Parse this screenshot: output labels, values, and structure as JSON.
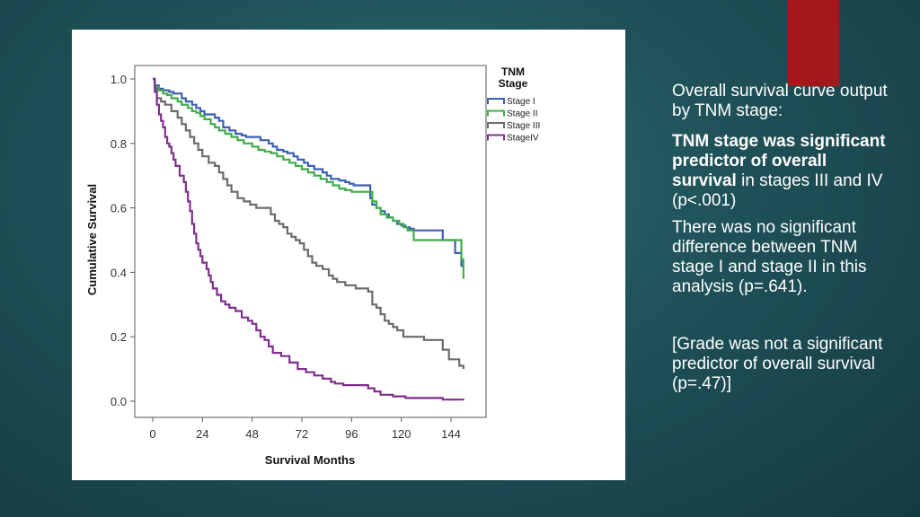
{
  "colors": {
    "accent": "#a3191b",
    "background": "#1f5158"
  },
  "slide_text": {
    "intro": "Overall survival curve output by TNM stage:",
    "sig_bold": "TNM stage was significant predictor of overall survival",
    "sig_rest": " in stages III and IV (p<.001)",
    "no_diff": "There was no significant difference between TNM stage I and stage II in this analysis (p=.641).",
    "grade": "[Grade was not a significant predictor of overall survival (p=.47)]"
  },
  "chart_data": {
    "type": "line",
    "step": true,
    "title": "",
    "xlabel": "Survival Months",
    "ylabel": "Cumulative Survival",
    "xlim": [
      0,
      156
    ],
    "ylim": [
      0,
      1
    ],
    "xticks": [
      0,
      24,
      48,
      72,
      96,
      120,
      144
    ],
    "xtick_labels": [
      "0",
      "24",
      "48",
      "72",
      "96",
      "120",
      "144"
    ],
    "yticks": [
      0,
      0.2,
      0.4,
      0.6,
      0.8,
      1.0
    ],
    "ytick_labels": [
      "0.0",
      "0.2",
      "0.4",
      "0.6",
      "0.8",
      "1.0"
    ],
    "legend_title": "TNM Stage",
    "legend_position": "top-right outside",
    "grid": false,
    "series": [
      {
        "name": "Stage I",
        "color": "#3b5fb5",
        "x": [
          0,
          1,
          3,
          5,
          8,
          10,
          14,
          16,
          19,
          21,
          23,
          25,
          30,
          32,
          34,
          37,
          40,
          43,
          45,
          52,
          56,
          58,
          60,
          63,
          65,
          68,
          70,
          73,
          75,
          78,
          82,
          84,
          86,
          90,
          93,
          95,
          97,
          105,
          106,
          108,
          110,
          112,
          114,
          116,
          118,
          120,
          122,
          124,
          126,
          128,
          130,
          140,
          146,
          149,
          150
        ],
        "y": [
          1.0,
          0.98,
          0.97,
          0.965,
          0.96,
          0.955,
          0.94,
          0.93,
          0.92,
          0.91,
          0.9,
          0.89,
          0.88,
          0.87,
          0.85,
          0.84,
          0.83,
          0.825,
          0.82,
          0.81,
          0.8,
          0.79,
          0.78,
          0.775,
          0.77,
          0.76,
          0.75,
          0.74,
          0.73,
          0.72,
          0.71,
          0.7,
          0.69,
          0.685,
          0.68,
          0.675,
          0.67,
          0.63,
          0.61,
          0.6,
          0.59,
          0.58,
          0.57,
          0.56,
          0.55,
          0.545,
          0.54,
          0.535,
          0.53,
          0.53,
          0.53,
          0.5,
          0.46,
          0.42,
          0.42
        ]
      },
      {
        "name": "Stage II",
        "color": "#3fae49",
        "x": [
          0,
          1,
          3,
          5,
          7,
          9,
          12,
          14,
          17,
          19,
          21,
          23,
          25,
          28,
          30,
          32,
          35,
          38,
          41,
          44,
          48,
          51,
          54,
          57,
          60,
          63,
          66,
          69,
          72,
          75,
          78,
          81,
          84,
          87,
          90,
          93,
          96,
          106,
          108,
          110,
          113,
          116,
          119,
          121,
          123,
          126,
          140,
          149,
          150
        ],
        "y": [
          1.0,
          0.975,
          0.965,
          0.955,
          0.95,
          0.94,
          0.93,
          0.92,
          0.91,
          0.9,
          0.895,
          0.885,
          0.875,
          0.86,
          0.85,
          0.84,
          0.83,
          0.82,
          0.81,
          0.8,
          0.79,
          0.78,
          0.775,
          0.77,
          0.76,
          0.75,
          0.74,
          0.73,
          0.72,
          0.71,
          0.7,
          0.69,
          0.68,
          0.67,
          0.66,
          0.655,
          0.65,
          0.62,
          0.6,
          0.58,
          0.57,
          0.56,
          0.55,
          0.54,
          0.53,
          0.5,
          0.5,
          0.44,
          0.38
        ]
      },
      {
        "name": "Stage III",
        "color": "#6b6b6b",
        "x": [
          0,
          1,
          2,
          4,
          6,
          9,
          12,
          14,
          16,
          18,
          20,
          22,
          24,
          27,
          30,
          32,
          34,
          36,
          38,
          41,
          44,
          47,
          50,
          53,
          57,
          59,
          61,
          63,
          65,
          67,
          69,
          71,
          73,
          75,
          77,
          79,
          82,
          85,
          87,
          89,
          93,
          98,
          100,
          102,
          104,
          106,
          108,
          110,
          112,
          114,
          116,
          118,
          121,
          131,
          135,
          140,
          143,
          148,
          150
        ],
        "y": [
          1.0,
          0.97,
          0.94,
          0.93,
          0.92,
          0.9,
          0.88,
          0.86,
          0.84,
          0.82,
          0.8,
          0.78,
          0.76,
          0.74,
          0.73,
          0.71,
          0.69,
          0.67,
          0.65,
          0.63,
          0.62,
          0.61,
          0.6,
          0.6,
          0.58,
          0.56,
          0.55,
          0.54,
          0.52,
          0.51,
          0.5,
          0.49,
          0.47,
          0.45,
          0.43,
          0.42,
          0.41,
          0.39,
          0.38,
          0.37,
          0.36,
          0.35,
          0.35,
          0.35,
          0.34,
          0.3,
          0.29,
          0.27,
          0.25,
          0.24,
          0.23,
          0.22,
          0.2,
          0.19,
          0.19,
          0.16,
          0.13,
          0.11,
          0.1
        ]
      },
      {
        "name": "StageIV",
        "color": "#7f2f8c",
        "x": [
          0,
          1,
          2,
          3,
          4,
          5,
          6,
          7,
          8,
          9,
          10,
          11,
          13,
          15,
          16,
          17,
          18,
          19,
          20,
          21,
          22,
          23,
          24,
          26,
          27,
          28,
          29,
          31,
          33,
          35,
          37,
          40,
          43,
          46,
          48,
          50,
          52,
          54,
          56,
          58,
          62,
          66,
          70,
          74,
          78,
          82,
          86,
          88,
          92,
          98,
          104,
          107,
          110,
          116,
          122,
          130,
          140,
          150
        ],
        "y": [
          1.0,
          0.96,
          0.92,
          0.89,
          0.87,
          0.85,
          0.82,
          0.8,
          0.79,
          0.77,
          0.75,
          0.73,
          0.7,
          0.68,
          0.65,
          0.62,
          0.59,
          0.55,
          0.52,
          0.49,
          0.47,
          0.45,
          0.43,
          0.41,
          0.39,
          0.37,
          0.35,
          0.33,
          0.31,
          0.3,
          0.29,
          0.28,
          0.26,
          0.25,
          0.24,
          0.22,
          0.2,
          0.19,
          0.17,
          0.15,
          0.14,
          0.12,
          0.1,
          0.09,
          0.08,
          0.07,
          0.06,
          0.055,
          0.05,
          0.05,
          0.04,
          0.03,
          0.02,
          0.015,
          0.01,
          0.01,
          0.005,
          0.004
        ]
      }
    ]
  }
}
